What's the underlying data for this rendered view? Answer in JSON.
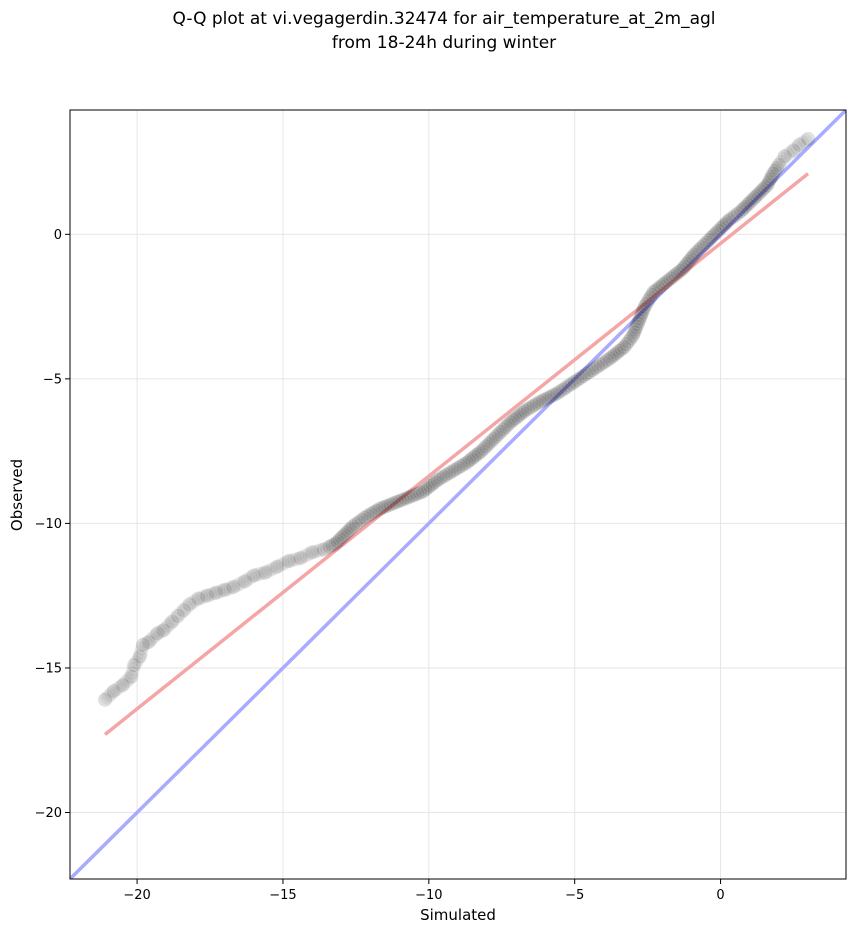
{
  "chart_data": {
    "type": "scatter",
    "title_line1": "Q-Q plot at vi.vegagerdin.32474 for air_temperature_at_2m_agl",
    "title_line2": "from 18-24h during winter",
    "xlabel": "Simulated",
    "ylabel": "Observed",
    "xlim": [
      -22.3,
      4.3
    ],
    "ylim": [
      -22.3,
      4.3
    ],
    "xticks": [
      -20,
      -15,
      -10,
      -5,
      0
    ],
    "yticks": [
      -20,
      -15,
      -10,
      -5,
      0
    ],
    "xtick_labels": [
      "−20",
      "−15",
      "−10",
      "−5",
      "0"
    ],
    "ytick_labels": [
      "−20",
      "−15",
      "−10",
      "−5",
      "0"
    ],
    "grid": true,
    "identity_line": {
      "color": "#aaaaff",
      "from": [
        -22.3,
        -22.3
      ],
      "to": [
        4.3,
        4.3
      ]
    },
    "fit_line": {
      "color": "#f4a6a6",
      "from": [
        -21.1,
        -17.3
      ],
      "to": [
        3.0,
        2.1
      ]
    },
    "quantiles": [
      [
        -21.1,
        -16.1
      ],
      [
        -20.8,
        -15.8
      ],
      [
        -20.5,
        -15.6
      ],
      [
        -20.2,
        -15.3
      ],
      [
        -20.1,
        -14.9
      ],
      [
        -19.9,
        -14.6
      ],
      [
        -19.8,
        -14.2
      ],
      [
        -19.6,
        -14.1
      ],
      [
        -19.3,
        -13.8
      ],
      [
        -19.1,
        -13.7
      ],
      [
        -18.8,
        -13.4
      ],
      [
        -18.6,
        -13.2
      ],
      [
        -18.4,
        -13.0
      ],
      [
        -18.2,
        -12.8
      ],
      [
        -17.9,
        -12.6
      ],
      [
        -17.6,
        -12.5
      ],
      [
        -17.3,
        -12.4
      ],
      [
        -17.0,
        -12.3
      ],
      [
        -16.7,
        -12.2
      ],
      [
        -16.3,
        -12.0
      ],
      [
        -16.0,
        -11.8
      ],
      [
        -15.6,
        -11.7
      ],
      [
        -15.2,
        -11.5
      ],
      [
        -14.8,
        -11.3
      ],
      [
        -14.4,
        -11.2
      ],
      [
        -14.0,
        -11.0
      ],
      [
        -13.6,
        -10.9
      ],
      [
        -13.2,
        -10.7
      ],
      [
        -12.9,
        -10.4
      ],
      [
        -12.6,
        -10.1
      ],
      [
        -12.2,
        -9.8
      ],
      [
        -11.7,
        -9.5
      ],
      [
        -11.2,
        -9.3
      ],
      [
        -10.7,
        -9.1
      ],
      [
        -10.2,
        -8.9
      ],
      [
        -9.7,
        -8.5
      ],
      [
        -9.2,
        -8.2
      ],
      [
        -8.7,
        -7.9
      ],
      [
        -8.2,
        -7.5
      ],
      [
        -7.7,
        -7.0
      ],
      [
        -7.2,
        -6.5
      ],
      [
        -6.7,
        -6.1
      ],
      [
        -6.2,
        -5.8
      ],
      [
        -5.6,
        -5.5
      ],
      [
        -5.0,
        -5.1
      ],
      [
        -4.4,
        -4.7
      ],
      [
        -3.8,
        -4.3
      ],
      [
        -3.3,
        -3.9
      ],
      [
        -3.0,
        -3.5
      ],
      [
        -2.8,
        -3.0
      ],
      [
        -2.6,
        -2.5
      ],
      [
        -2.3,
        -2.0
      ],
      [
        -1.8,
        -1.6
      ],
      [
        -1.3,
        -1.2
      ],
      [
        -0.9,
        -0.7
      ],
      [
        -0.4,
        -0.2
      ],
      [
        0.0,
        0.2
      ],
      [
        0.3,
        0.5
      ],
      [
        0.7,
        0.8
      ],
      [
        1.0,
        1.1
      ],
      [
        1.3,
        1.4
      ],
      [
        1.6,
        1.7
      ],
      [
        1.8,
        2.1
      ],
      [
        2.0,
        2.4
      ],
      [
        2.2,
        2.7
      ],
      [
        2.5,
        2.9
      ],
      [
        2.7,
        3.1
      ],
      [
        3.0,
        3.3
      ]
    ]
  }
}
